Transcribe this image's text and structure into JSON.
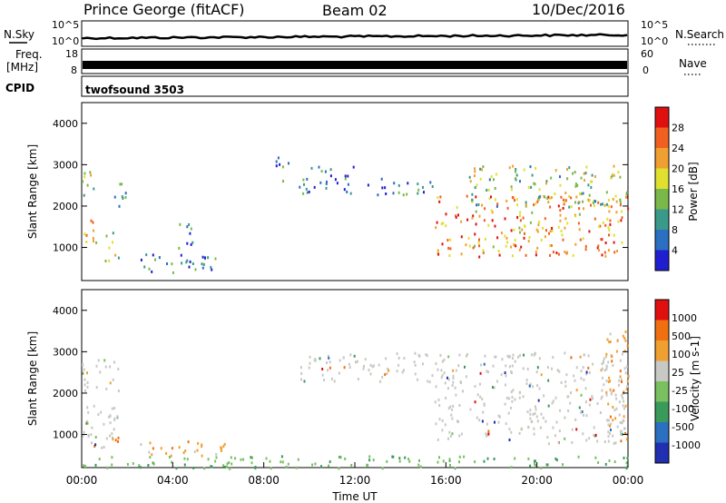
{
  "header": {
    "station": "Prince George (fitACF)",
    "beam": "Beam 02",
    "date": "10/Dec/2016"
  },
  "strip_panels": {
    "nsky": {
      "label": "N.Sky",
      "ticks": [
        "10^5",
        "10^0"
      ]
    },
    "nsearch": {
      "label": "N.Search",
      "ticks": [
        "10^5",
        "10^0"
      ]
    },
    "freq": {
      "label_line1": "Freq.",
      "label_line2": "[MHz]",
      "ticks": [
        "18",
        "8"
      ]
    },
    "nave": {
      "label": "Nave",
      "ticks": [
        "60",
        "0"
      ]
    },
    "cpid": {
      "label": "CPID",
      "program": "twofsound 3503"
    }
  },
  "chart_data": [
    {
      "type": "heatmap",
      "name": "power",
      "ylabel": "Slant Range [km]",
      "yticks": [
        "4000",
        "3000",
        "2000",
        "1000"
      ],
      "ylim": [
        200,
        4500
      ],
      "xlim": [
        "00:00",
        "24:00"
      ],
      "colorbar": {
        "label": "Power [dB]",
        "ticks": [
          "28",
          "24",
          "20",
          "16",
          "12",
          "8",
          "4"
        ],
        "colors": [
          "#1f1fd0",
          "#2a6fc0",
          "#3a9a8a",
          "#7ab84a",
          "#e0e030",
          "#f0a030",
          "#f06020",
          "#e01010"
        ]
      },
      "regions": [
        {
          "t0": 0.0,
          "t1": 0.7,
          "r0": 900,
          "r1": 1700,
          "level": "high"
        },
        {
          "t0": 0.0,
          "t1": 0.7,
          "r0": 2200,
          "r1": 2900,
          "level": "mid"
        },
        {
          "t0": 1.0,
          "t1": 1.6,
          "r0": 600,
          "r1": 1400,
          "level": "mid"
        },
        {
          "t0": 1.4,
          "t1": 2.2,
          "r0": 2000,
          "r1": 2600,
          "level": "low"
        },
        {
          "t0": 2.5,
          "t1": 6.0,
          "r0": 400,
          "r1": 900,
          "level": "low"
        },
        {
          "t0": 4.2,
          "t1": 5.0,
          "r0": 900,
          "r1": 1600,
          "level": "low"
        },
        {
          "t0": 8.5,
          "t1": 9.2,
          "r0": 2600,
          "r1": 3200,
          "level": "low"
        },
        {
          "t0": 9.5,
          "t1": 12.0,
          "r0": 2300,
          "r1": 3000,
          "level": "low"
        },
        {
          "t0": 12.5,
          "t1": 15.5,
          "r0": 2300,
          "r1": 2700,
          "level": "low"
        },
        {
          "t0": 15.5,
          "t1": 24.0,
          "r0": 800,
          "r1": 2300,
          "level": "high"
        },
        {
          "t0": 17.0,
          "t1": 24.0,
          "r0": 2000,
          "r1": 3000,
          "level": "mid"
        }
      ]
    },
    {
      "type": "heatmap",
      "name": "velocity",
      "ylabel": "Slant Range [km]",
      "yticks": [
        "4000",
        "3000",
        "2000",
        "1000"
      ],
      "ylim": [
        200,
        4500
      ],
      "xlim": [
        "00:00",
        "24:00"
      ],
      "xticks": [
        "00:00",
        "04:00",
        "08:00",
        "12:00",
        "16:00",
        "20:00",
        "00:00"
      ],
      "xlabel": "Time UT",
      "colorbar": {
        "label": "Velocity [m s-1]",
        "ticks": [
          "1000",
          "500",
          "100",
          "25",
          "-25",
          "-100",
          "-500",
          "-1000"
        ],
        "colors": [
          "#2030b0",
          "#2a6fc0",
          "#3a9a5a",
          "#78c060",
          "#c8c8c4",
          "#f0a030",
          "#f07010",
          "#e01010"
        ]
      },
      "regions": [
        {
          "t0": 0.0,
          "t1": 1.6,
          "r0": 700,
          "r1": 2900,
          "level": "neutral"
        },
        {
          "t0": 0.8,
          "t1": 1.6,
          "r0": 700,
          "r1": 1000,
          "level": "negative"
        },
        {
          "t0": 2.5,
          "t1": 6.3,
          "r0": 500,
          "r1": 900,
          "level": "negative"
        },
        {
          "t0": 9.5,
          "t1": 15.5,
          "r0": 2300,
          "r1": 3000,
          "level": "neutral"
        },
        {
          "t0": 15.5,
          "t1": 24.0,
          "r0": 800,
          "r1": 3000,
          "level": "neutral"
        },
        {
          "t0": 23.0,
          "t1": 24.0,
          "r0": 800,
          "r1": 3600,
          "level": "negative"
        },
        {
          "t0": 0.0,
          "t1": 24.0,
          "r0": 200,
          "r1": 500,
          "level": "positive"
        }
      ]
    }
  ]
}
